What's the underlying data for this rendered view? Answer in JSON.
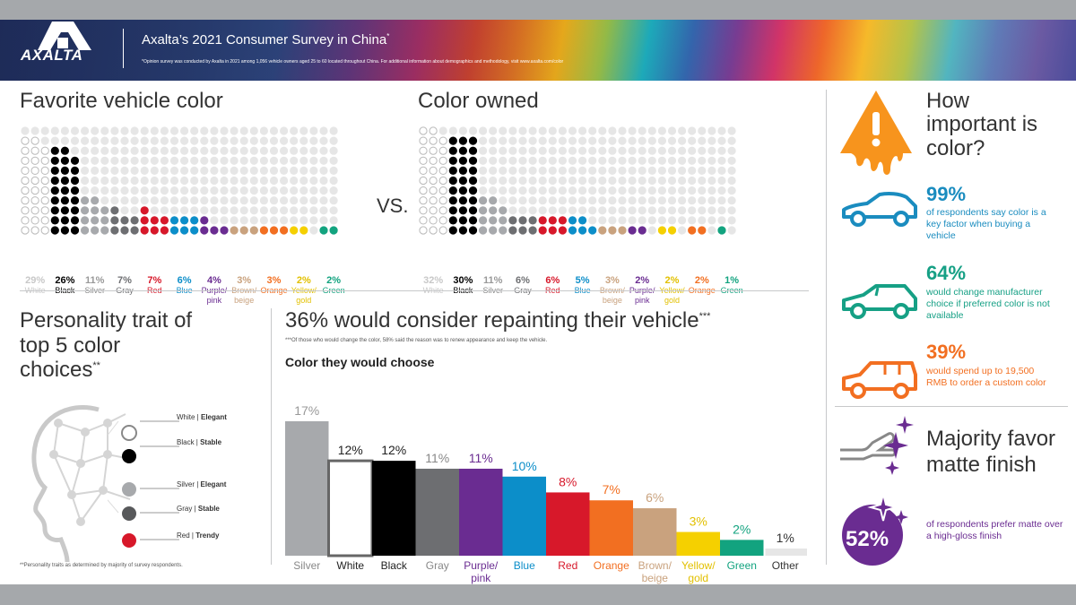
{
  "header": {
    "brand": "AXALTA",
    "title": "Axalta’s 2021 Consumer Survey in China",
    "title_mark": "*",
    "note": "*Opinion survey was conducted by Axalta in 2021 among 1,056 vehicle owners aged 25 to 60 located throughout China. For additional information about demographics and methodology, visit www.axalta.com/color"
  },
  "sections": {
    "favorite_title": "Favorite vehicle color",
    "owned_title": "Color owned",
    "vs": "VS.",
    "personality_title": "Personality trait of top 5 color choices",
    "personality_mark": "**",
    "repaint_title": "36% would consider repainting their vehicle",
    "repaint_mark": "***",
    "repaint_note": "***Of those who would change the color, 58% said the reason was to renew appearance and keep the vehicle.",
    "choose_title": "Color they would choose",
    "personality_footnote": "**Personality traits as determined by majority of survey respondents.",
    "importance_title": "How important is color?",
    "matte_title": "Majority favor matte finish"
  },
  "importance_stats": [
    {
      "pct": "99%",
      "text": "of respondents say color is a key factor when buying a vehicle",
      "color": "#1a8cbf",
      "icon": "car-sedan-icon"
    },
    {
      "pct": "64%",
      "text": "would change manufacturer choice if preferred color is not available",
      "color": "#16a085",
      "icon": "car-hatchback-icon"
    },
    {
      "pct": "39%",
      "text": "would spend up to 19,500 RMB to order a custom color",
      "color": "#f26f21",
      "icon": "car-suv-icon"
    }
  ],
  "matte": {
    "pct": "52%",
    "text": "of respondents prefer matte over a high-gloss finish"
  },
  "traits": [
    {
      "color": "White",
      "trait": "Elegant",
      "fill": "#ffffff"
    },
    {
      "color": "Black",
      "trait": "Stable",
      "fill": "#000000"
    },
    {
      "color": "Silver",
      "trait": "Elegant",
      "fill": "#a7a9ac"
    },
    {
      "color": "Gray",
      "trait": "Stable",
      "fill": "#58595b"
    },
    {
      "color": "Red",
      "trait": "Trendy",
      "fill": "#d7182a"
    }
  ],
  "chart_data": [
    {
      "type": "bar",
      "id": "favorite",
      "title": "Favorite vehicle color",
      "categories": [
        "White",
        "Black",
        "Silver",
        "Gray",
        "Red",
        "Blue",
        "Purple/ pink",
        "Brown/ beige",
        "Orange",
        "Yellow/ gold",
        "Green"
      ],
      "values": [
        29,
        26,
        11,
        7,
        7,
        6,
        4,
        3,
        3,
        2,
        2
      ],
      "labels": [
        "29%",
        "26%",
        "11%",
        "7%",
        "7%",
        "6%",
        "4%",
        "3%",
        "3%",
        "2%",
        "2%"
      ],
      "colors": [
        "#e4e4e4",
        "#000000",
        "#a7a9ac",
        "#6d6e71",
        "#d7182a",
        "#0c8ec9",
        "#6a2c91",
        "#c9a27e",
        "#f26f21",
        "#f5d000",
        "#12a37f"
      ],
      "ylim": [
        0,
        100
      ]
    },
    {
      "type": "bar",
      "id": "owned",
      "title": "Color owned",
      "categories": [
        "White",
        "Black",
        "Silver",
        "Gray",
        "Red",
        "Blue",
        "Brown/ beige",
        "Purple/ pink",
        "Yellow/ gold",
        "Orange",
        "Green"
      ],
      "values": [
        32,
        30,
        11,
        6,
        6,
        5,
        3,
        2,
        2,
        2,
        1
      ],
      "labels": [
        "32%",
        "30%",
        "11%",
        "6%",
        "6%",
        "5%",
        "3%",
        "2%",
        "2%",
        "2%",
        "1%"
      ],
      "colors": [
        "#e4e4e4",
        "#000000",
        "#a7a9ac",
        "#6d6e71",
        "#d7182a",
        "#0c8ec9",
        "#c9a27e",
        "#6a2c91",
        "#f5d000",
        "#f26f21",
        "#12a37f"
      ],
      "ylim": [
        0,
        100
      ]
    },
    {
      "type": "bar",
      "id": "repaint",
      "title": "Color they would choose",
      "categories": [
        "Silver",
        "White",
        "Black",
        "Gray",
        "Purple/ pink",
        "Blue",
        "Red",
        "Orange",
        "Brown/ beige",
        "Yellow/ gold",
        "Green",
        "Other"
      ],
      "values": [
        17,
        12,
        12,
        11,
        11,
        10,
        8,
        7,
        6,
        3,
        2,
        1
      ],
      "labels": [
        "17%",
        "12%",
        "12%",
        "11%",
        "11%",
        "10%",
        "8%",
        "7%",
        "6%",
        "3%",
        "2%",
        "1%"
      ],
      "colors": [
        "#a7a9ac",
        "#ffffff",
        "#000000",
        "#6d6e71",
        "#6a2c91",
        "#0c8ec9",
        "#d7182a",
        "#f26f21",
        "#c9a27e",
        "#f5d000",
        "#12a37f",
        "#d9d9d9"
      ],
      "ylim": [
        0,
        17
      ]
    }
  ]
}
